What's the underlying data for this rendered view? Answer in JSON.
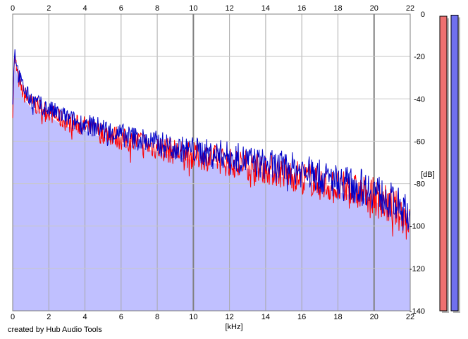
{
  "credit": "created by Hub Audio Tools",
  "chart_data": {
    "type": "line",
    "x_unit_label": "[kHz]",
    "y_unit_label": "[dB]",
    "xlim": [
      0,
      22
    ],
    "ylim": [
      -140,
      0
    ],
    "x_ticks": [
      0,
      2,
      4,
      6,
      8,
      10,
      12,
      14,
      16,
      18,
      20,
      22
    ],
    "y_ticks": [
      0,
      -20,
      -40,
      -60,
      -80,
      -100,
      -120,
      -140
    ],
    "y_tick_labels": [
      "0",
      "-20",
      "-40",
      "-60",
      "-80",
      "-100",
      "-120",
      "-140"
    ],
    "grid": true,
    "fill_color": "#c0c0ff",
    "series": [
      {
        "color": "#ff0000",
        "x": [
          0,
          0.1,
          0.2,
          0.3,
          0.5,
          0.8,
          1.0,
          1.5,
          2.0,
          2.5,
          3.0,
          3.5,
          4.0,
          4.5,
          5.0,
          5.5,
          6.0,
          6.5,
          7.0,
          7.5,
          8.0,
          8.5,
          9.0,
          9.5,
          10.0,
          10.5,
          11.0,
          11.5,
          12.0,
          12.5,
          13.0,
          13.5,
          14.0,
          14.5,
          15.0,
          15.5,
          16.0,
          16.5,
          17.0,
          17.5,
          18.0,
          18.5,
          19.0,
          19.5,
          20.0,
          20.5,
          21.0,
          21.5,
          22.0
        ],
        "values": [
          -45,
          -20,
          -25,
          -30,
          -36,
          -40,
          -42,
          -44,
          -46,
          -49,
          -51,
          -52,
          -53,
          -55,
          -56,
          -57,
          -59,
          -60,
          -60,
          -62,
          -63,
          -64,
          -65,
          -66,
          -67,
          -67,
          -68,
          -69,
          -70,
          -71,
          -71,
          -72,
          -73,
          -74,
          -75,
          -76,
          -77,
          -78,
          -80,
          -81,
          -82,
          -83,
          -84,
          -85,
          -86,
          -89,
          -91,
          -94,
          -97
        ]
      },
      {
        "color": "#0000c8",
        "x": [
          0,
          0.1,
          0.2,
          0.3,
          0.5,
          0.8,
          1.0,
          1.5,
          2.0,
          2.5,
          3.0,
          3.5,
          4.0,
          4.5,
          5.0,
          5.5,
          6.0,
          6.5,
          7.0,
          7.5,
          8.0,
          8.5,
          9.0,
          9.5,
          10.0,
          10.5,
          11.0,
          11.5,
          12.0,
          12.5,
          13.0,
          13.5,
          14.0,
          14.5,
          15.0,
          15.5,
          16.0,
          16.5,
          17.0,
          17.5,
          18.0,
          18.5,
          19.0,
          19.5,
          20.0,
          20.5,
          21.0,
          21.5,
          22.0
        ],
        "values": [
          -40,
          -17,
          -22,
          -28,
          -33,
          -38,
          -40,
          -43,
          -45,
          -47,
          -49,
          -51,
          -52,
          -53,
          -54,
          -56,
          -57,
          -58,
          -59,
          -60,
          -61,
          -62,
          -63,
          -64,
          -64,
          -65,
          -66,
          -66,
          -67,
          -68,
          -69,
          -70,
          -71,
          -72,
          -72,
          -73,
          -74,
          -75,
          -77,
          -78,
          -79,
          -80,
          -81,
          -82,
          -83,
          -86,
          -89,
          -92,
          -96
        ]
      }
    ],
    "level_meters": [
      {
        "color": "#ee7070",
        "level_db": -1
      },
      {
        "color": "#7070ee",
        "level_db": -0.5
      }
    ]
  }
}
